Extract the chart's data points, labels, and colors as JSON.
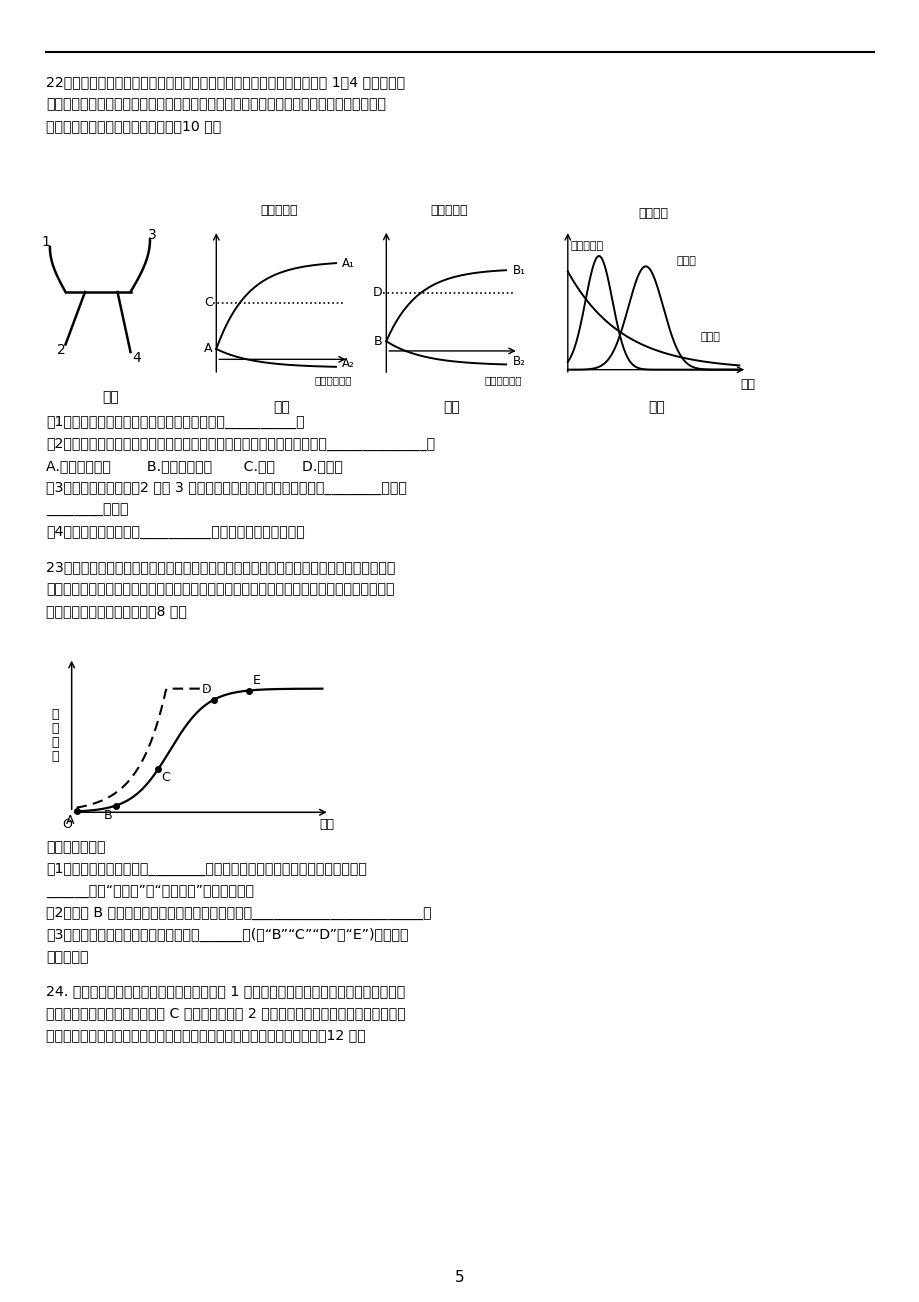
{
  "page_number": "5",
  "bg_color": "#ffffff",
  "text_color": "#000000",
  "q22_text_line1": "22．图甲为某幼苗横放一段时间后的生长状态，图乙和图丙为横放后幼苗 1～4 处生长素浓",
  "q22_text_line2": "度变化曲线（號线代表生长素既不促进也不抑制生长的浓度），图丁为种子萌发过程中几种",
  "q22_text_line3": "激素的变化曲线。回答下列问题：（10 分）",
  "fig_jia_label": "图甲",
  "fig_yi_label": "图乙",
  "fig_bing_label": "图丙",
  "fig_ding_label": "图丁",
  "q22_q1": "（1）经过一系列反应可转变成生长素的物质是__________。",
  "q22_q2": "（2）根的向地生长和茎的背地生长中，能证明生长素作用具有两重性的是______________。",
  "q22_q2_opts": "A.根的向地生长        B.茎的背地生长       C.均能      D.均不能",
  "q22_q3_line1": "（3）图甲幼苗横放后，2 处和 3 处生长素浓度的变化依次对应图中的________曲线和",
  "q22_q3_line2": "________曲线。",
  "q22_q4": "（4）从图丁曲线分析，__________对种子萌发有抑制作用。",
  "q23_text_line1": "23．调查草原老鼠数量变化对畜牧业有一定的指导意义。假如某时期有一批田鼠迁入内蒙古",
  "q23_text_line2": "草原，该田鼠以优质牧草的根为食，某科研小组对该草原的这一批田鼠进行了长期追踪调查，",
  "q23_text_line3": "并绘制了如图所示曲线图。（8 分）",
  "q23_q_intro": "回答以下问题：",
  "q23_q1_line1": "（1）图中號线表示具体在________条件下田鼠种群的增长方式，该增长方式中",
  "q23_q1_line2": "______（填“增长率”或“增长速率”）保持不变。",
  "q23_q2": "（2）图中 B 点以后同一时刻號线与实线的差値表示________________________。",
  "q23_q3_line1": "（3）牧民为了减少田鼠的数量，在图中______点(填“B”“C”“D”或“E”)投放鼠药",
  "q23_q3_line2": "效果最好。",
  "q24_text_line1": "24. 草原是综色生态环境的重要组成部分。图 1 所示曲线表示某草原生态系统中三个不同种",
  "q24_text_line2": "群的生长和繁衍情况，已知种群 C 为自养生物。图 2 表示该生态系统中光合作用积累的有机",
  "q24_text_line3": "物被植食性动物利用的过程，图中的字母表示所含的能量。请回答问题：（12 分）"
}
